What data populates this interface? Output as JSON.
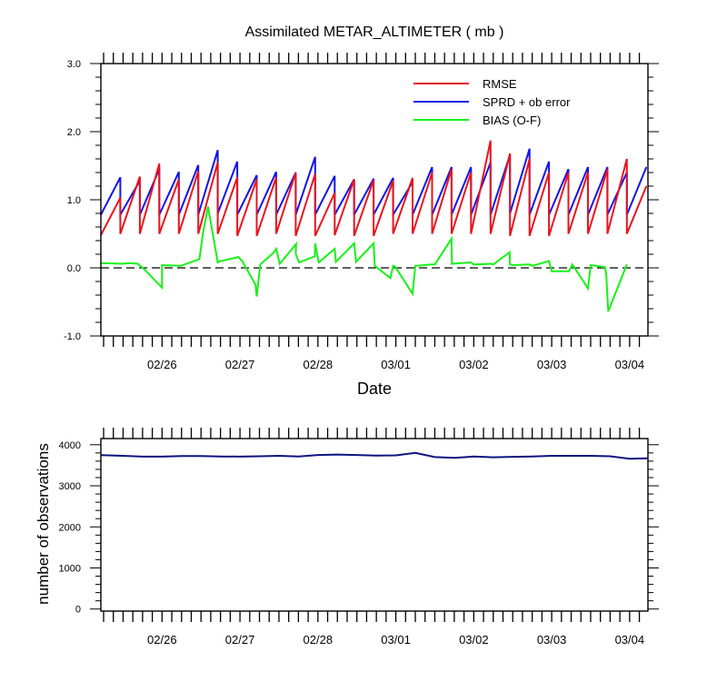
{
  "colors": {
    "rmse": "#e8141e",
    "sprd": "#1414e6",
    "bias": "#17f117",
    "nobs": "#0c1480",
    "axis": "#000000"
  },
  "chart_data": [
    {
      "type": "line",
      "title": "Assimilated METAR_ALTIMETER ( mb )",
      "xlabel": "Date",
      "ylabel": "",
      "x_unit": "days since 02/25 00Z",
      "xlim": [
        0.215,
        7.235
      ],
      "ylim": [
        -1.0,
        3.0
      ],
      "yticks": [
        3.0,
        2.0,
        1.0,
        0.0,
        -1.0
      ],
      "ytick_labels": [
        "3.0",
        "2.0",
        "1.0",
        "0.0",
        "-1.0"
      ],
      "xticks": [
        1,
        2,
        3,
        4,
        5,
        6,
        7
      ],
      "xtick_labels": [
        "02/26",
        "02/27",
        "02/28",
        "03/01",
        "03/02",
        "03/03",
        "03/04"
      ],
      "reference_line": {
        "y": 0.0,
        "style": "dashed"
      },
      "legend_position": "top-right",
      "cycle_length_days": 0.25,
      "series": [
        {
          "name": "RMSE",
          "color_key": "rmse",
          "cycles": [
            {
              "t0": 0.215,
              "y0": 0.48,
              "y1": 1.03
            },
            {
              "t0": 0.465,
              "y0": 0.5,
              "y1": 1.34
            },
            {
              "t0": 0.715,
              "y0": 0.5,
              "y1": 1.53
            },
            {
              "t0": 0.965,
              "y0": 0.5,
              "y1": 1.3
            },
            {
              "t0": 1.215,
              "y0": 0.5,
              "y1": 1.42
            },
            {
              "t0": 1.465,
              "y0": 0.5,
              "y1": 1.55
            },
            {
              "t0": 1.715,
              "y0": 0.5,
              "y1": 1.33
            },
            {
              "t0": 1.965,
              "y0": 0.47,
              "y1": 1.3
            },
            {
              "t0": 2.215,
              "y0": 0.47,
              "y1": 1.33
            },
            {
              "t0": 2.465,
              "y0": 0.5,
              "y1": 1.4
            },
            {
              "t0": 2.715,
              "y0": 0.47,
              "y1": 1.38
            },
            {
              "t0": 2.965,
              "y0": 0.47,
              "y1": 1.1
            },
            {
              "t0": 3.215,
              "y0": 0.48,
              "y1": 1.3
            },
            {
              "t0": 3.465,
              "y0": 0.47,
              "y1": 1.29
            },
            {
              "t0": 3.715,
              "y0": 0.47,
              "y1": 1.28
            },
            {
              "t0": 3.965,
              "y0": 0.5,
              "y1": 1.32
            },
            {
              "t0": 4.215,
              "y0": 0.5,
              "y1": 1.4
            },
            {
              "t0": 4.465,
              "y0": 0.5,
              "y1": 1.45
            },
            {
              "t0": 4.715,
              "y0": 0.5,
              "y1": 1.4
            },
            {
              "t0": 4.965,
              "y0": 0.5,
              "y1": 1.87
            },
            {
              "t0": 5.215,
              "y0": 0.5,
              "y1": 1.68
            },
            {
              "t0": 5.465,
              "y0": 0.47,
              "y1": 1.6
            },
            {
              "t0": 5.715,
              "y0": 0.47,
              "y1": 1.4
            },
            {
              "t0": 5.965,
              "y0": 0.47,
              "y1": 1.4
            },
            {
              "t0": 6.215,
              "y0": 0.5,
              "y1": 1.4
            },
            {
              "t0": 6.465,
              "y0": 0.5,
              "y1": 1.45
            },
            {
              "t0": 6.715,
              "y0": 0.5,
              "y1": 1.6
            },
            {
              "t0": 6.965,
              "y0": 0.5,
              "y1": 1.2
            }
          ]
        },
        {
          "name": "SPRD + ob error",
          "color_key": "sprd",
          "cycles": [
            {
              "t0": 0.215,
              "y0": 0.78,
              "y1": 1.33
            },
            {
              "t0": 0.465,
              "y0": 0.78,
              "y1": 1.28
            },
            {
              "t0": 0.715,
              "y0": 0.78,
              "y1": 1.45
            },
            {
              "t0": 0.965,
              "y0": 0.78,
              "y1": 1.41
            },
            {
              "t0": 1.215,
              "y0": 0.78,
              "y1": 1.51
            },
            {
              "t0": 1.465,
              "y0": 0.78,
              "y1": 1.73
            },
            {
              "t0": 1.715,
              "y0": 0.8,
              "y1": 1.56
            },
            {
              "t0": 1.965,
              "y0": 0.78,
              "y1": 1.36
            },
            {
              "t0": 2.215,
              "y0": 0.78,
              "y1": 1.41
            },
            {
              "t0": 2.465,
              "y0": 0.78,
              "y1": 1.4
            },
            {
              "t0": 2.715,
              "y0": 0.78,
              "y1": 1.63
            },
            {
              "t0": 2.965,
              "y0": 0.78,
              "y1": 1.35
            },
            {
              "t0": 3.215,
              "y0": 0.78,
              "y1": 1.3
            },
            {
              "t0": 3.465,
              "y0": 0.78,
              "y1": 1.31
            },
            {
              "t0": 3.715,
              "y0": 0.78,
              "y1": 1.32
            },
            {
              "t0": 3.965,
              "y0": 0.78,
              "y1": 1.26
            },
            {
              "t0": 4.215,
              "y0": 0.78,
              "y1": 1.48
            },
            {
              "t0": 4.465,
              "y0": 0.78,
              "y1": 1.48
            },
            {
              "t0": 4.715,
              "y0": 0.78,
              "y1": 1.48
            },
            {
              "t0": 4.965,
              "y0": 0.78,
              "y1": 1.55
            },
            {
              "t0": 5.215,
              "y0": 0.78,
              "y1": 1.66
            },
            {
              "t0": 5.465,
              "y0": 0.8,
              "y1": 1.75
            },
            {
              "t0": 5.715,
              "y0": 0.78,
              "y1": 1.56
            },
            {
              "t0": 5.965,
              "y0": 0.78,
              "y1": 1.45
            },
            {
              "t0": 6.215,
              "y0": 0.78,
              "y1": 1.48
            },
            {
              "t0": 6.465,
              "y0": 0.78,
              "y1": 1.48
            },
            {
              "t0": 6.715,
              "y0": 0.78,
              "y1": 1.4
            },
            {
              "t0": 6.965,
              "y0": 0.78,
              "y1": 1.48
            }
          ]
        },
        {
          "name": "BIAS (O-F)",
          "color_key": "bias",
          "x": [
            0.215,
            0.49,
            0.58,
            0.69,
            0.78,
            1.0,
            1.0,
            1.24,
            1.48,
            1.525,
            1.59,
            1.715,
            1.74,
            1.76,
            1.98,
            2.01,
            2.03,
            2.2,
            2.215,
            2.26,
            2.43,
            2.465,
            2.51,
            2.72,
            2.715,
            2.76,
            2.96,
            2.965,
            3.01,
            3.215,
            3.23,
            3.465,
            3.49,
            3.715,
            3.73,
            3.93,
            3.965,
            3.99,
            4.215,
            4.25,
            4.465,
            4.5,
            4.715,
            4.72,
            4.965,
            5.0,
            5.225,
            5.25,
            5.46,
            5.465,
            5.5,
            5.715,
            5.75,
            5.965,
            6.0,
            6.22,
            6.265,
            6.465,
            6.5,
            6.685,
            6.7,
            6.725,
            6.965
          ],
          "y": [
            0.07,
            0.06,
            0.07,
            0.06,
            -0.03,
            -0.29,
            0.04,
            0.03,
            0.13,
            0.51,
            0.9,
            0.08,
            0.1,
            0.1,
            0.16,
            0.12,
            0.1,
            -0.25,
            -0.42,
            0.05,
            0.22,
            0.28,
            0.06,
            0.35,
            0.2,
            0.08,
            0.17,
            0.36,
            0.08,
            0.28,
            0.09,
            0.36,
            0.09,
            0.36,
            0.03,
            -0.15,
            0.03,
            0.02,
            -0.38,
            0.03,
            0.05,
            0.05,
            0.43,
            0.06,
            0.08,
            0.05,
            0.06,
            0.05,
            0.23,
            0.05,
            0.04,
            0.05,
            0.03,
            0.1,
            -0.05,
            -0.05,
            0.05,
            -0.3,
            0.04,
            0.01,
            -0.1,
            -0.64,
            0.05
          ]
        }
      ]
    },
    {
      "type": "line",
      "title": "",
      "xlabel": "",
      "ylabel": "number of observations",
      "xlim": [
        0.215,
        7.235
      ],
      "ylim": [
        -50,
        4150
      ],
      "yticks": [
        4000,
        3000,
        2000,
        1000,
        0
      ],
      "ytick_labels": [
        "4000",
        "3000",
        "2000",
        "1000",
        "0"
      ],
      "xticks": [
        1,
        2,
        3,
        4,
        5,
        6,
        7
      ],
      "xtick_labels": [
        "02/26",
        "02/27",
        "02/28",
        "03/01",
        "03/02",
        "03/03",
        "03/04"
      ],
      "series": [
        {
          "name": "number of observations",
          "color_key": "nobs",
          "x": [
            0.215,
            0.5,
            0.75,
            1.0,
            1.25,
            1.5,
            1.75,
            2.0,
            2.25,
            2.5,
            2.75,
            3.0,
            3.25,
            3.5,
            3.75,
            4.0,
            4.25,
            4.5,
            4.75,
            5.0,
            5.25,
            5.5,
            5.75,
            6.0,
            6.25,
            6.5,
            6.75,
            7.0,
            7.235
          ],
          "y": [
            3745,
            3730,
            3710,
            3710,
            3725,
            3725,
            3715,
            3710,
            3720,
            3730,
            3715,
            3750,
            3760,
            3750,
            3735,
            3740,
            3800,
            3700,
            3680,
            3715,
            3695,
            3705,
            3715,
            3730,
            3730,
            3730,
            3720,
            3660,
            3670
          ]
        }
      ]
    }
  ]
}
